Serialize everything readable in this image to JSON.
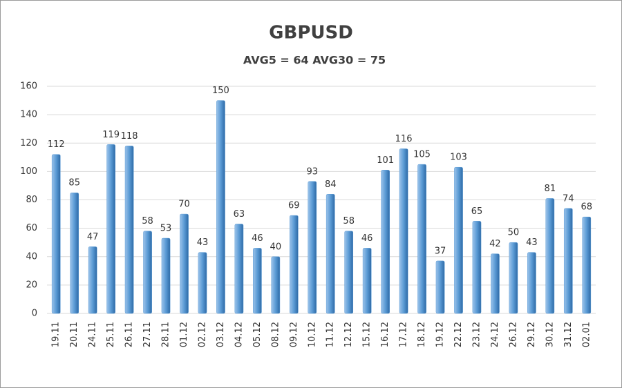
{
  "chart_data": {
    "type": "bar",
    "title": "GBPUSD",
    "subtitle": "AVG5 = 64 AVG30 = 75",
    "categories": [
      "19.11",
      "20.11",
      "24.11",
      "25.11",
      "26.11",
      "27.11",
      "28.11",
      "01.12",
      "02.12",
      "03.12",
      "04.12",
      "05.12",
      "08.12",
      "09.12",
      "10.12",
      "11.12",
      "12.12",
      "15.12",
      "16.12",
      "17.12",
      "18.12",
      "19.12",
      "22.12",
      "23.12",
      "24.12",
      "26.12",
      "29.12",
      "30.12",
      "31.12",
      "02.01"
    ],
    "values": [
      112,
      85,
      47,
      119,
      118,
      58,
      53,
      70,
      43,
      150,
      63,
      46,
      40,
      69,
      93,
      84,
      58,
      46,
      101,
      116,
      105,
      37,
      103,
      65,
      42,
      50,
      43,
      81,
      74,
      68
    ],
    "color": "#5b9bd5",
    "ylim": [
      0,
      160
    ],
    "yticks": [
      0,
      20,
      40,
      60,
      80,
      100,
      120,
      140,
      160
    ],
    "grid": true
  }
}
